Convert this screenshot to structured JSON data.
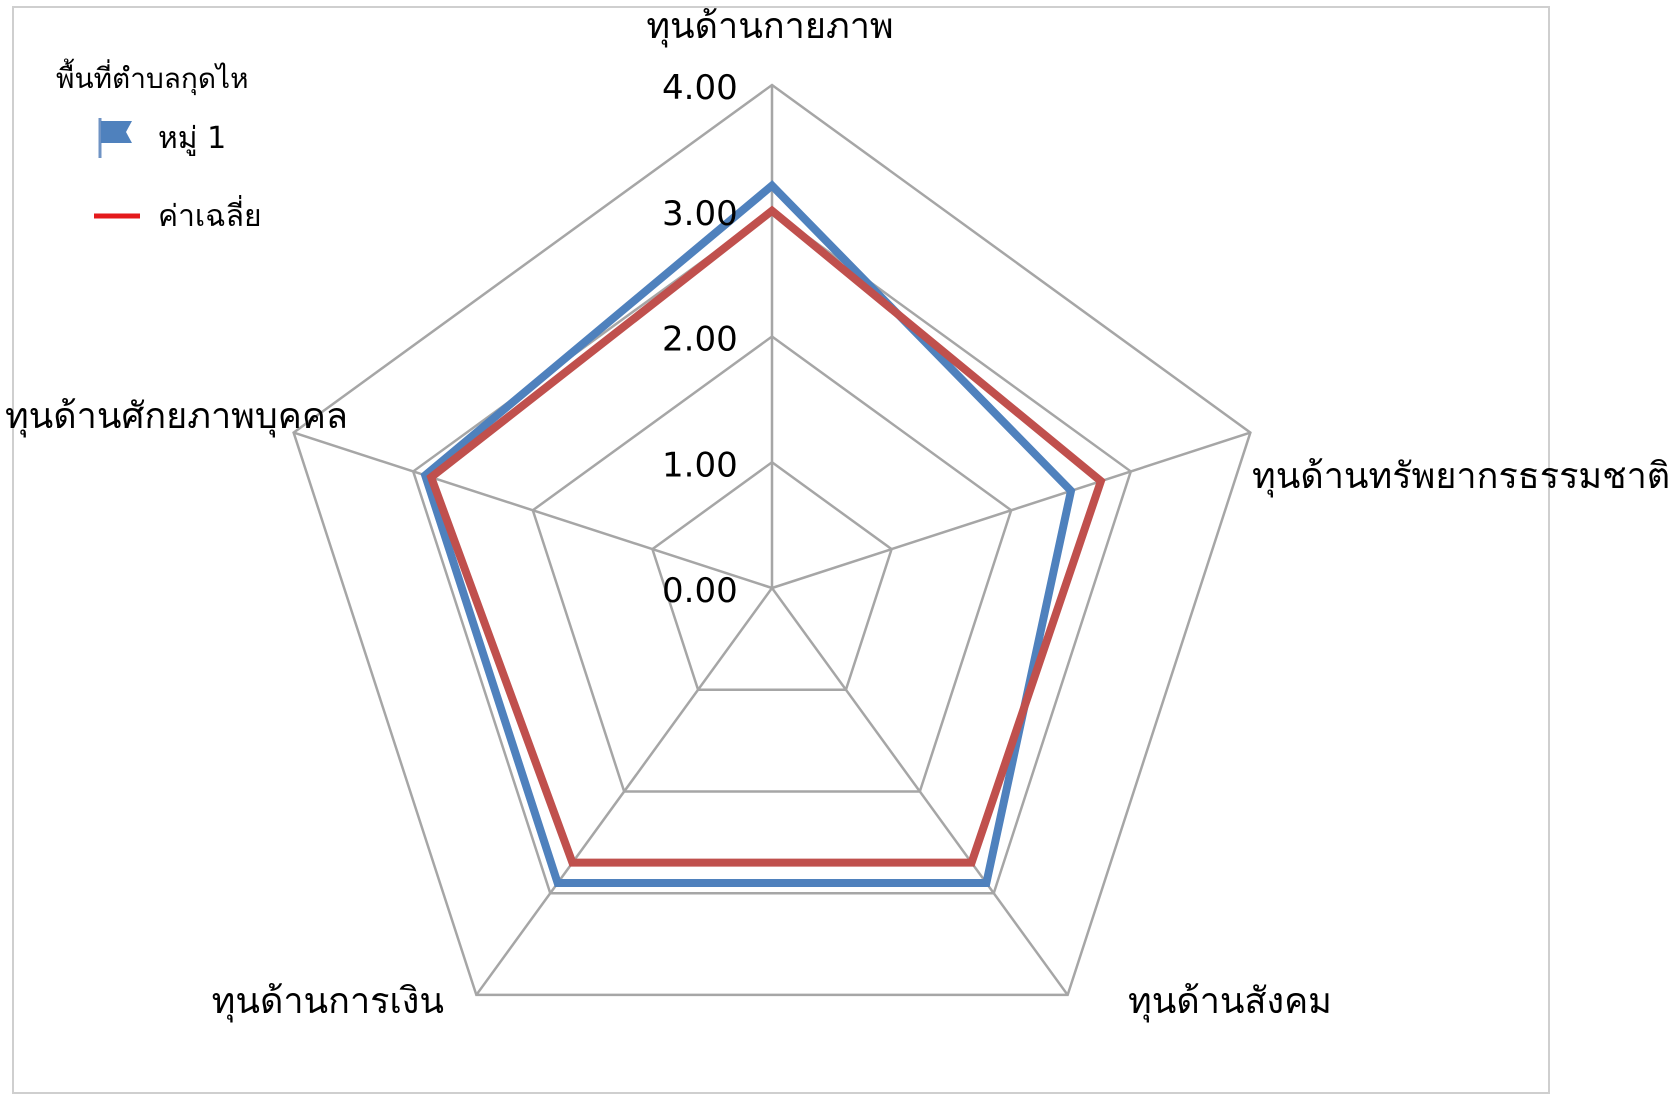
{
  "chart_data": {
    "type": "radar",
    "axes": [
      "ทุนด้านกายภาพ",
      "ทุนด้านทรัพยากรธรรมชาติ",
      "ทุนด้านสังคม",
      "ทุนด้านการเงิน",
      "ทุนด้านศักยภาพบุคคล"
    ],
    "rlim": [
      0,
      4
    ],
    "ticks": [
      0,
      1,
      2,
      3,
      4
    ],
    "tick_labels": [
      "0.00",
      "1.00",
      "2.00",
      "3.00",
      "4.00"
    ],
    "series": [
      {
        "name": "หมู่ 1",
        "color": "#4f81bd",
        "values": [
          3.2,
          2.5,
          2.9,
          2.9,
          2.9
        ]
      },
      {
        "name": "ค่าเฉลี่ย",
        "color": "#c0504d",
        "values": [
          3.0,
          2.75,
          2.7,
          2.7,
          2.85
        ]
      }
    ],
    "grid": true,
    "legend": {
      "title": "พื้นที่ตำบลกุดไห",
      "placement": "top-left",
      "entries": [
        {
          "label": "หมู่ 1",
          "icon": "flag-icon",
          "color": "#4f81bd"
        },
        {
          "label": "ค่าเฉลี่ย",
          "icon": "line-icon",
          "color": "#e41a1c"
        }
      ]
    },
    "grid_color": "#a6a6a6"
  }
}
